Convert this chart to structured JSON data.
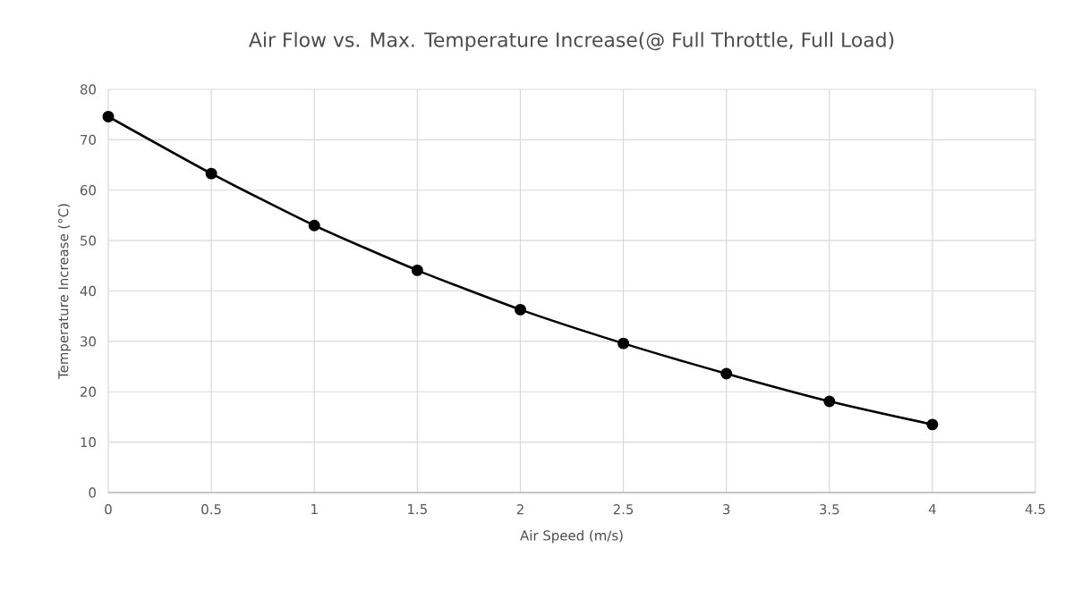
{
  "chart_data": {
    "type": "line",
    "title": "Air Flow vs. Max. Temperature  Increase(@  Full Throttle, Full Load)",
    "xlabel": "Air Speed  (m/s)",
    "ylabel": "Temperature Increase (°C)",
    "x": [
      0,
      0.5,
      1,
      1.5,
      2,
      2.5,
      3,
      3.5,
      4
    ],
    "series": [
      {
        "color": "#000000",
        "values": [
          74.6,
          63.3,
          53.0,
          44.1,
          36.3,
          29.6,
          23.6,
          18.1,
          13.5
        ]
      }
    ],
    "xlim": [
      0,
      4.5
    ],
    "xticks": [
      0,
      0.5,
      1,
      1.5,
      2,
      2.5,
      3,
      3.5,
      4,
      4.5
    ],
    "ylim": [
      0,
      80
    ],
    "yticks": [
      0,
      10,
      20,
      30,
      40,
      50,
      60,
      70,
      80
    ],
    "grid": true,
    "marker": "circle",
    "line_style": "solid"
  }
}
